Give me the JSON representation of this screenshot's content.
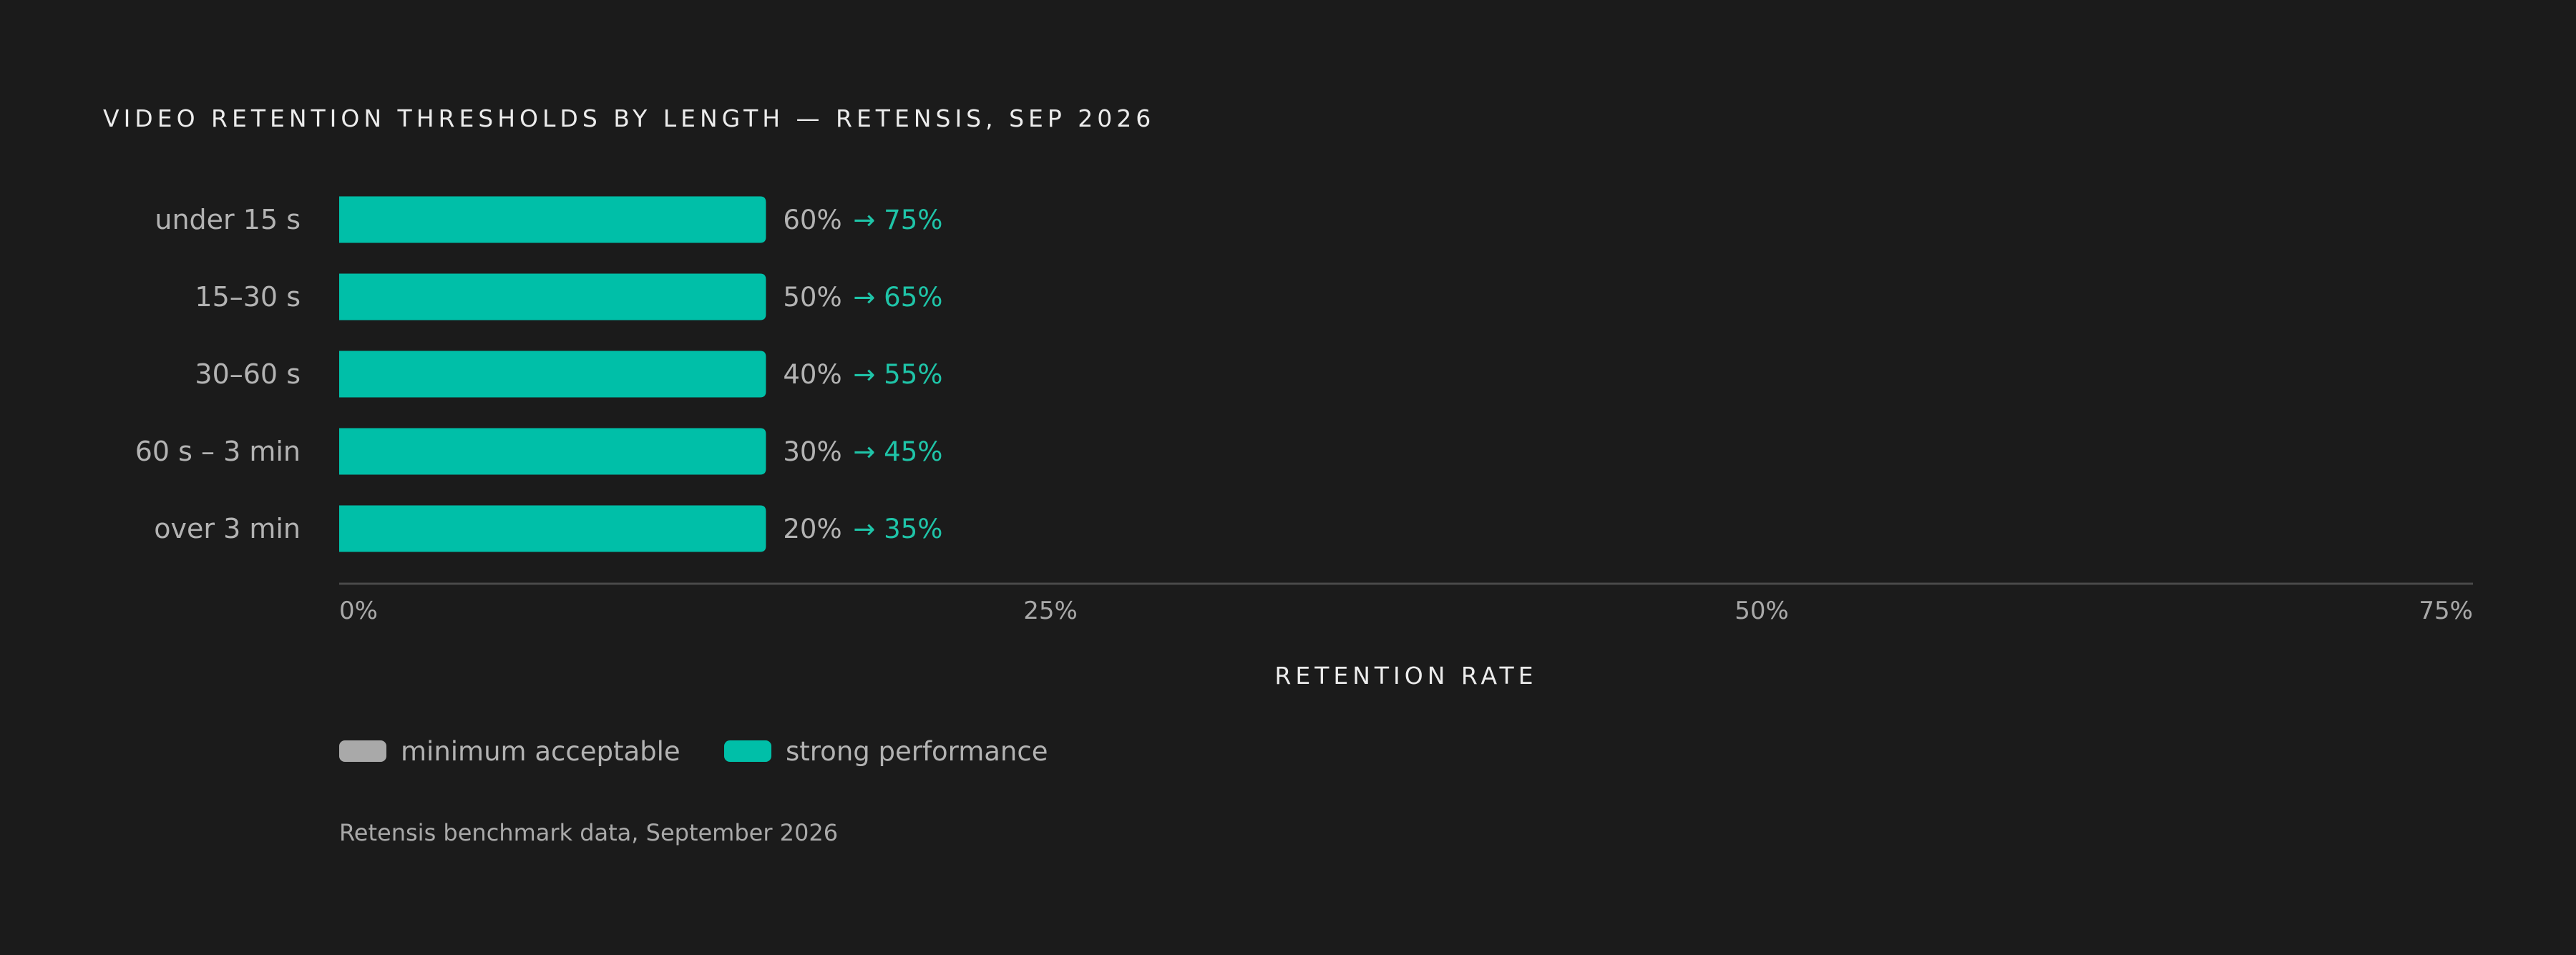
{
  "chart_data": {
    "type": "bar",
    "orientation": "horizontal",
    "title": "VIDEO RETENTION THRESHOLDS BY LENGTH — RETENSIS, SEP 2026",
    "xlabel": "RETENTION RATE",
    "ylabel": "",
    "categories": [
      "under 15 s",
      "15–30 s",
      "30–60 s",
      "60 s – 3 min",
      "over 3 min"
    ],
    "series": [
      {
        "name": "minimum acceptable",
        "values": [
          60,
          50,
          40,
          30,
          20
        ],
        "labels": [
          "60%",
          "50%",
          "40%",
          "30%",
          "20%"
        ],
        "color": "#a9a9a9"
      },
      {
        "name": "strong performance",
        "values": [
          75,
          65,
          55,
          45,
          35
        ],
        "labels": [
          "→ 75%",
          "→ 65%",
          "→ 55%",
          "→ 45%",
          "→ 35%"
        ],
        "color": "#00bfa8"
      }
    ],
    "displayed_bar_value": 15,
    "xlim": [
      0,
      75
    ],
    "ticks": [
      {
        "value": 0,
        "label": "0%"
      },
      {
        "value": 25,
        "label": "25%"
      },
      {
        "value": 50,
        "label": "50%"
      },
      {
        "value": 75,
        "label": "75%"
      }
    ],
    "grid": false,
    "legend_position": "bottom-left",
    "source": "Retensis benchmark data, September 2026",
    "colors": {
      "background": "#1b1b1b",
      "bar": "#00bfa8",
      "axis": "#4a4a4a"
    }
  }
}
